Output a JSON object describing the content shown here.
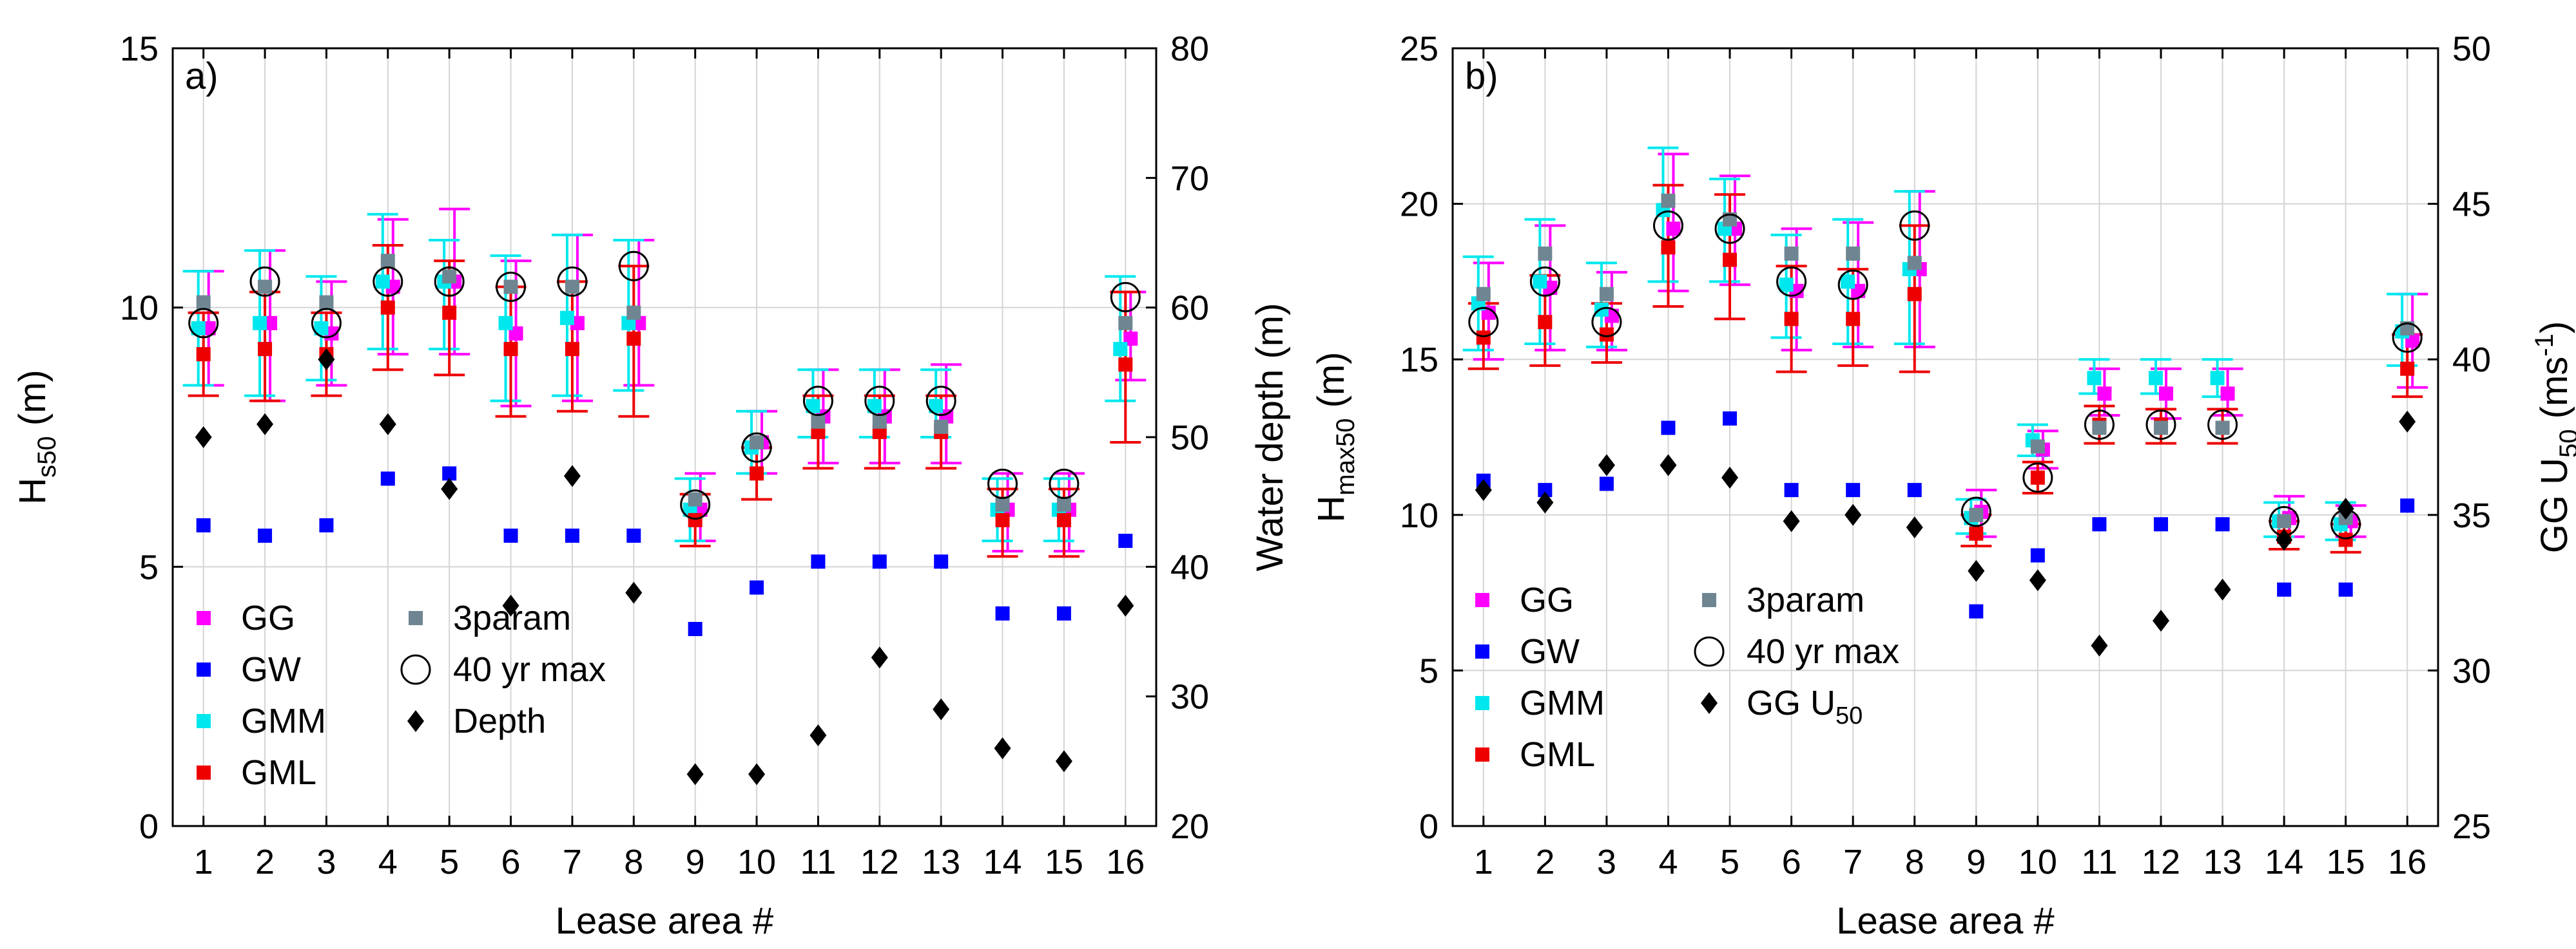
{
  "chart_data": [
    {
      "panel_label": "a)",
      "type": "scatter",
      "xlabel": "Lease area #",
      "ylabel_left": {
        "main": "H",
        "sub": "s50",
        "suffix": " (m)"
      },
      "ylabel_right": "Water depth (m)",
      "x": [
        1,
        2,
        3,
        4,
        5,
        6,
        7,
        8,
        9,
        10,
        11,
        12,
        13,
        14,
        15,
        16
      ],
      "xlim": [
        0.5,
        16.5
      ],
      "ylim_left": [
        0,
        15
      ],
      "ylim_right": [
        20,
        80
      ],
      "left_ticks": [
        "0",
        "5",
        "10",
        "15"
      ],
      "right_ticks": [
        "20",
        "30",
        "40",
        "50",
        "60",
        "70",
        "80"
      ],
      "grid": true,
      "legend_location": "lower-left",
      "legend_entries": [
        "GG",
        "GW",
        "GMM",
        "GML",
        "3param",
        "40 yr max",
        "Depth"
      ],
      "series": [
        {
          "name": "GG",
          "color": "#ff00ff",
          "marker": "square",
          "axis": "left",
          "values": [
            9.6,
            9.7,
            9.5,
            10.4,
            10.5,
            9.5,
            9.7,
            9.7,
            6.1,
            7.4,
            7.9,
            7.9,
            7.9,
            6.1,
            6.1,
            9.4
          ],
          "err_low": [
            8.5,
            8.2,
            8.5,
            9.1,
            9.1,
            8.1,
            8.2,
            8.5,
            5.5,
            6.8,
            7.0,
            7.0,
            7.0,
            5.3,
            5.3,
            8.6
          ],
          "err_high": [
            10.7,
            11.1,
            10.5,
            11.7,
            11.9,
            10.9,
            11.4,
            11.3,
            6.8,
            8.0,
            8.8,
            8.8,
            8.9,
            6.8,
            6.8,
            10.3
          ]
        },
        {
          "name": "GW",
          "color": "#0000ff",
          "marker": "square",
          "axis": "left",
          "values": [
            5.8,
            5.6,
            5.8,
            6.7,
            6.8,
            5.6,
            5.6,
            5.6,
            3.8,
            4.6,
            5.1,
            5.1,
            5.1,
            4.1,
            4.1,
            5.5
          ]
        },
        {
          "name": "GMM",
          "color": "#00e8ee",
          "marker": "square",
          "axis": "left",
          "values": [
            9.6,
            9.7,
            9.6,
            10.5,
            10.5,
            9.7,
            9.8,
            9.7,
            6.1,
            7.3,
            8.1,
            8.1,
            8.1,
            6.1,
            6.1,
            9.2
          ],
          "err_low": [
            8.5,
            8.3,
            8.6,
            9.2,
            9.2,
            8.2,
            8.3,
            8.4,
            5.5,
            6.8,
            7.5,
            7.5,
            7.5,
            5.5,
            5.5,
            8.2
          ],
          "err_high": [
            10.7,
            11.1,
            10.6,
            11.8,
            11.3,
            11.0,
            11.4,
            11.3,
            6.7,
            8.0,
            8.8,
            8.8,
            8.8,
            6.7,
            6.7,
            10.6
          ]
        },
        {
          "name": "GML",
          "color": "#ee0000",
          "marker": "square",
          "axis": "left",
          "values": [
            9.1,
            9.2,
            9.1,
            10.0,
            9.9,
            9.2,
            9.2,
            9.4,
            5.9,
            6.8,
            7.6,
            7.6,
            7.6,
            5.9,
            5.9,
            8.9
          ],
          "err_low": [
            8.3,
            8.2,
            8.3,
            8.8,
            8.7,
            7.9,
            8.0,
            7.9,
            5.4,
            6.3,
            6.9,
            6.9,
            6.9,
            5.2,
            5.2,
            7.4
          ],
          "err_high": [
            9.9,
            10.3,
            9.9,
            11.2,
            10.9,
            10.4,
            10.5,
            10.8,
            6.4,
            7.3,
            8.3,
            8.3,
            8.3,
            6.5,
            6.5,
            10.3
          ]
        },
        {
          "name": "3param",
          "color": "#6f8692",
          "marker": "square",
          "axis": "left",
          "values": [
            10.1,
            10.4,
            10.1,
            10.9,
            10.6,
            10.4,
            10.4,
            9.9,
            6.3,
            7.4,
            7.8,
            7.8,
            7.7,
            6.2,
            6.2,
            9.7
          ]
        },
        {
          "name": "40 yr max",
          "color": "#000000",
          "marker": "circle-open",
          "axis": "left",
          "values": [
            9.7,
            10.5,
            9.7,
            10.5,
            10.5,
            10.4,
            10.5,
            10.8,
            6.2,
            7.3,
            8.2,
            8.2,
            8.2,
            6.6,
            6.6,
            10.2
          ]
        },
        {
          "name": "Depth",
          "color": "#000000",
          "marker": "diamond",
          "axis": "right",
          "values": [
            50,
            51,
            56,
            51,
            46,
            37,
            47,
            38,
            24,
            24,
            27,
            33,
            29,
            26,
            25,
            37
          ]
        }
      ]
    },
    {
      "panel_label": "b)",
      "type": "scatter",
      "xlabel": "Lease area #",
      "ylabel_left": {
        "main": "H",
        "sub": "max50",
        "suffix": " (m)"
      },
      "ylabel_right": {
        "main": "GG U",
        "sub": "50",
        "suffix": " (ms",
        "sup": "-1",
        "end": ")"
      },
      "x": [
        1,
        2,
        3,
        4,
        5,
        6,
        7,
        8,
        9,
        10,
        11,
        12,
        13,
        14,
        15,
        16
      ],
      "xlim": [
        0.5,
        16.5
      ],
      "ylim_left": [
        0,
        25
      ],
      "ylim_right": [
        25,
        50
      ],
      "left_ticks": [
        "0",
        "5",
        "10",
        "15",
        "20",
        "25"
      ],
      "right_ticks": [
        "25",
        "30",
        "35",
        "40",
        "45",
        "50"
      ],
      "grid": true,
      "legend_location": "lower-left",
      "legend_entries": [
        "GG",
        "GW",
        "GMM",
        "GML",
        "3param",
        "40 yr max",
        "GG U",
        "50"
      ],
      "series": [
        {
          "name": "GG",
          "color": "#ff00ff",
          "marker": "square",
          "axis": "left",
          "values": [
            16.5,
            17.3,
            16.4,
            19.2,
            19.2,
            17.2,
            17.2,
            17.9,
            10.1,
            12.1,
            13.9,
            13.9,
            13.9,
            9.9,
            9.8,
            15.6
          ],
          "err_low": [
            15.0,
            15.3,
            15.3,
            17.2,
            17.4,
            15.3,
            15.4,
            15.4,
            9.3,
            11.5,
            13.2,
            13.1,
            13.2,
            9.3,
            9.3,
            14.1
          ],
          "err_high": [
            18.1,
            19.3,
            17.8,
            21.6,
            20.9,
            19.2,
            19.4,
            20.4,
            10.8,
            12.7,
            14.7,
            14.7,
            14.7,
            10.6,
            10.3,
            17.1
          ]
        },
        {
          "name": "GW",
          "color": "#0000ff",
          "marker": "square",
          "axis": "left",
          "values": [
            11.1,
            10.8,
            11.0,
            12.8,
            13.1,
            10.8,
            10.8,
            10.8,
            6.9,
            8.7,
            9.7,
            9.7,
            9.7,
            7.6,
            7.6,
            10.3
          ]
        },
        {
          "name": "GMM",
          "color": "#00e8ee",
          "marker": "square",
          "axis": "left",
          "values": [
            16.8,
            17.5,
            16.6,
            19.8,
            19.2,
            17.4,
            17.5,
            17.9,
            9.9,
            12.4,
            14.4,
            14.4,
            14.4,
            9.8,
            9.7,
            15.9
          ],
          "err_low": [
            15.3,
            15.5,
            15.4,
            17.5,
            17.5,
            15.7,
            15.5,
            15.5,
            9.4,
            11.9,
            13.9,
            13.9,
            13.8,
            9.3,
            9.2,
            14.8
          ],
          "err_high": [
            18.3,
            19.5,
            18.1,
            21.8,
            20.8,
            19.0,
            19.5,
            20.4,
            10.5,
            12.9,
            15.0,
            15.0,
            15.0,
            10.4,
            10.4,
            17.1
          ]
        },
        {
          "name": "GML",
          "color": "#ee0000",
          "marker": "square",
          "axis": "left",
          "values": [
            15.7,
            16.2,
            15.8,
            18.6,
            18.2,
            16.3,
            16.3,
            17.1,
            9.4,
            11.2,
            12.9,
            12.9,
            12.8,
            9.3,
            9.2,
            14.7
          ],
          "err_low": [
            14.7,
            14.8,
            14.9,
            16.7,
            16.3,
            14.6,
            14.8,
            14.6,
            9.0,
            10.7,
            12.3,
            12.3,
            12.3,
            8.9,
            8.8,
            13.8
          ],
          "err_high": [
            16.8,
            17.7,
            16.8,
            20.6,
            20.3,
            18.0,
            17.9,
            19.3,
            10.0,
            11.7,
            13.5,
            13.4,
            13.4,
            9.8,
            9.7,
            15.8
          ]
        },
        {
          "name": "3param",
          "color": "#6f8692",
          "marker": "square",
          "axis": "left",
          "values": [
            17.1,
            18.4,
            17.1,
            20.1,
            19.5,
            18.4,
            18.4,
            18.1,
            10.0,
            12.2,
            12.8,
            12.8,
            12.8,
            9.8,
            9.9,
            16.0
          ]
        },
        {
          "name": "40 yr max",
          "color": "#000000",
          "marker": "circle-open",
          "axis": "left",
          "values": [
            16.2,
            17.5,
            16.2,
            19.3,
            19.2,
            17.5,
            17.4,
            19.3,
            10.1,
            11.2,
            12.9,
            12.9,
            12.9,
            9.8,
            9.7,
            15.7
          ]
        },
        {
          "name": "GG U50",
          "color": "#000000",
          "marker": "diamond",
          "axis": "right",
          "values": [
            35.8,
            35.4,
            36.6,
            36.6,
            36.2,
            34.8,
            35.0,
            34.6,
            33.2,
            32.9,
            30.8,
            31.6,
            32.6,
            34.2,
            35.2,
            38.0
          ]
        }
      ]
    }
  ]
}
